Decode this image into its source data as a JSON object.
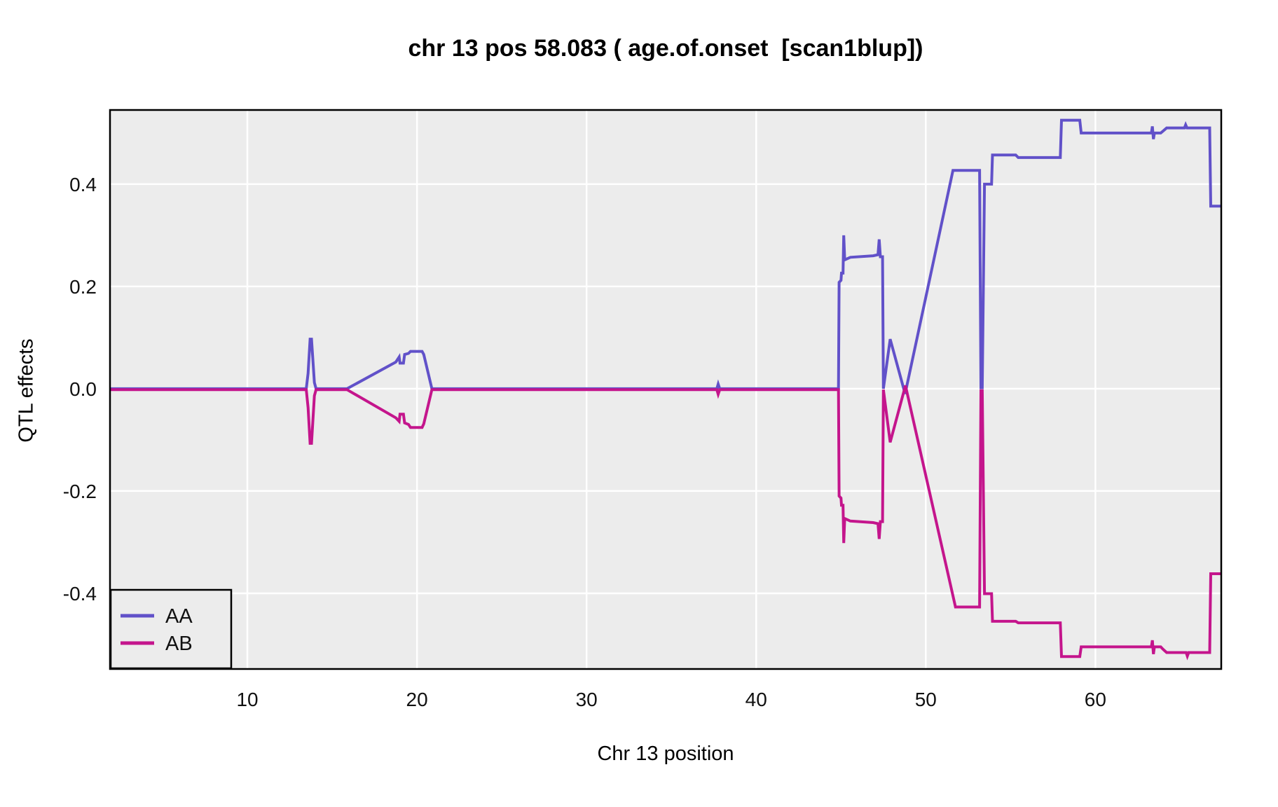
{
  "title": "chr 13 pos 58.083 ( age.of.onset  [scan1blup])",
  "chart_data": {
    "type": "line",
    "title": "chr 13 pos 58.083 ( age.of.onset  [scan1blup])",
    "xlabel": "Chr 13 position",
    "ylabel": "QTL effects",
    "xlim": [
      1.9,
      67.42
    ],
    "ylim": [
      -0.548,
      0.545
    ],
    "xticks": [
      10,
      20,
      30,
      40,
      50,
      60
    ],
    "xtick_labels": [
      "10",
      "20",
      "30",
      "40",
      "50",
      "60"
    ],
    "yticks": [
      0.4,
      0.2,
      0.0,
      -0.2,
      -0.4
    ],
    "ytick_labels": [
      "0.4",
      "0.2",
      "0.0",
      "-0.2",
      "-0.4"
    ],
    "grid": true,
    "panel_bg": "#ECECEC",
    "grid_color": "#FFFFFF",
    "border_color": "#000000",
    "legend_position": "bottom-left",
    "series": [
      {
        "name": "AA",
        "color": "#6151C9",
        "points": [
          [
            1.9,
            0
          ],
          [
            13.47,
            0
          ],
          [
            13.58,
            0.03
          ],
          [
            13.7,
            0.097
          ],
          [
            13.78,
            0.097
          ],
          [
            13.95,
            0.012
          ],
          [
            14.05,
            0
          ],
          [
            15.87,
            0
          ],
          [
            18.75,
            0.052
          ],
          [
            18.95,
            0.062
          ],
          [
            19.0,
            0.05
          ],
          [
            19.2,
            0.05
          ],
          [
            19.27,
            0.067
          ],
          [
            19.5,
            0.069
          ],
          [
            19.62,
            0.073
          ],
          [
            20.3,
            0.073
          ],
          [
            20.4,
            0.067
          ],
          [
            20.88,
            0
          ],
          [
            37.68,
            0
          ],
          [
            37.76,
            0.009
          ],
          [
            37.85,
            0
          ],
          [
            44.85,
            0
          ],
          [
            44.89,
            0.208
          ],
          [
            45.0,
            0.212
          ],
          [
            45.03,
            0.226
          ],
          [
            45.12,
            0.226
          ],
          [
            45.16,
            0.3
          ],
          [
            45.22,
            0.252
          ],
          [
            45.55,
            0.257
          ],
          [
            46.9,
            0.26
          ],
          [
            47.18,
            0.262
          ],
          [
            47.25,
            0.292
          ],
          [
            47.32,
            0.258
          ],
          [
            47.45,
            0.258
          ],
          [
            47.5,
            0
          ],
          [
            47.9,
            0.097
          ],
          [
            48.78,
            -0.01
          ],
          [
            51.6,
            0.427
          ],
          [
            53.17,
            0.427
          ],
          [
            53.25,
            0.002
          ],
          [
            53.33,
            0.002
          ],
          [
            53.46,
            0.4
          ],
          [
            53.88,
            0.4
          ],
          [
            53.93,
            0.457
          ],
          [
            55.3,
            0.457
          ],
          [
            55.45,
            0.452
          ],
          [
            57.93,
            0.452
          ],
          [
            58.0,
            0.525
          ],
          [
            59.08,
            0.525
          ],
          [
            59.16,
            0.5
          ],
          [
            63.3,
            0.5
          ],
          [
            63.36,
            0.513
          ],
          [
            63.42,
            0.488
          ],
          [
            63.48,
            0.5
          ],
          [
            63.85,
            0.5
          ],
          [
            64.0,
            0.504
          ],
          [
            64.2,
            0.51
          ],
          [
            65.25,
            0.51
          ],
          [
            65.32,
            0.516
          ],
          [
            65.4,
            0.51
          ],
          [
            66.74,
            0.51
          ],
          [
            66.8,
            0.357
          ],
          [
            67.42,
            0.357
          ]
        ]
      },
      {
        "name": "AB",
        "color": "#C4158C",
        "points": [
          [
            1.9,
            0
          ],
          [
            13.47,
            0
          ],
          [
            13.58,
            -0.035
          ],
          [
            13.7,
            -0.105
          ],
          [
            13.78,
            -0.105
          ],
          [
            13.95,
            -0.012
          ],
          [
            14.05,
            0
          ],
          [
            15.87,
            0
          ],
          [
            18.75,
            -0.055
          ],
          [
            18.95,
            -0.062
          ],
          [
            19.0,
            -0.048
          ],
          [
            19.2,
            -0.048
          ],
          [
            19.27,
            -0.065
          ],
          [
            19.5,
            -0.068
          ],
          [
            19.62,
            -0.074
          ],
          [
            20.3,
            -0.074
          ],
          [
            20.4,
            -0.067
          ],
          [
            20.88,
            0
          ],
          [
            37.68,
            0
          ],
          [
            37.76,
            -0.009
          ],
          [
            37.85,
            0
          ],
          [
            44.85,
            0
          ],
          [
            44.89,
            -0.208
          ],
          [
            45.0,
            -0.212
          ],
          [
            45.03,
            -0.226
          ],
          [
            45.12,
            -0.226
          ],
          [
            45.16,
            -0.3
          ],
          [
            45.22,
            -0.252
          ],
          [
            45.55,
            -0.257
          ],
          [
            46.9,
            -0.26
          ],
          [
            47.18,
            -0.262
          ],
          [
            47.25,
            -0.292
          ],
          [
            47.32,
            -0.258
          ],
          [
            47.45,
            -0.258
          ],
          [
            47.5,
            0
          ],
          [
            47.9,
            -0.103
          ],
          [
            48.8,
            0.008
          ],
          [
            51.75,
            -0.425
          ],
          [
            53.17,
            -0.425
          ],
          [
            53.25,
            -0.002
          ],
          [
            53.33,
            -0.002
          ],
          [
            53.46,
            -0.399
          ],
          [
            53.88,
            -0.399
          ],
          [
            53.93,
            -0.453
          ],
          [
            55.3,
            -0.453
          ],
          [
            55.45,
            -0.456
          ],
          [
            57.93,
            -0.456
          ],
          [
            58.0,
            -0.522
          ],
          [
            59.08,
            -0.522
          ],
          [
            59.16,
            -0.503
          ],
          [
            63.3,
            -0.503
          ],
          [
            63.36,
            -0.49
          ],
          [
            63.42,
            -0.517
          ],
          [
            63.48,
            -0.503
          ],
          [
            63.85,
            -0.503
          ],
          [
            64.0,
            -0.508
          ],
          [
            64.2,
            -0.514
          ],
          [
            65.35,
            -0.514
          ],
          [
            65.42,
            -0.521
          ],
          [
            65.5,
            -0.514
          ],
          [
            66.74,
            -0.514
          ],
          [
            66.8,
            -0.36
          ],
          [
            67.42,
            -0.36
          ]
        ]
      }
    ]
  }
}
